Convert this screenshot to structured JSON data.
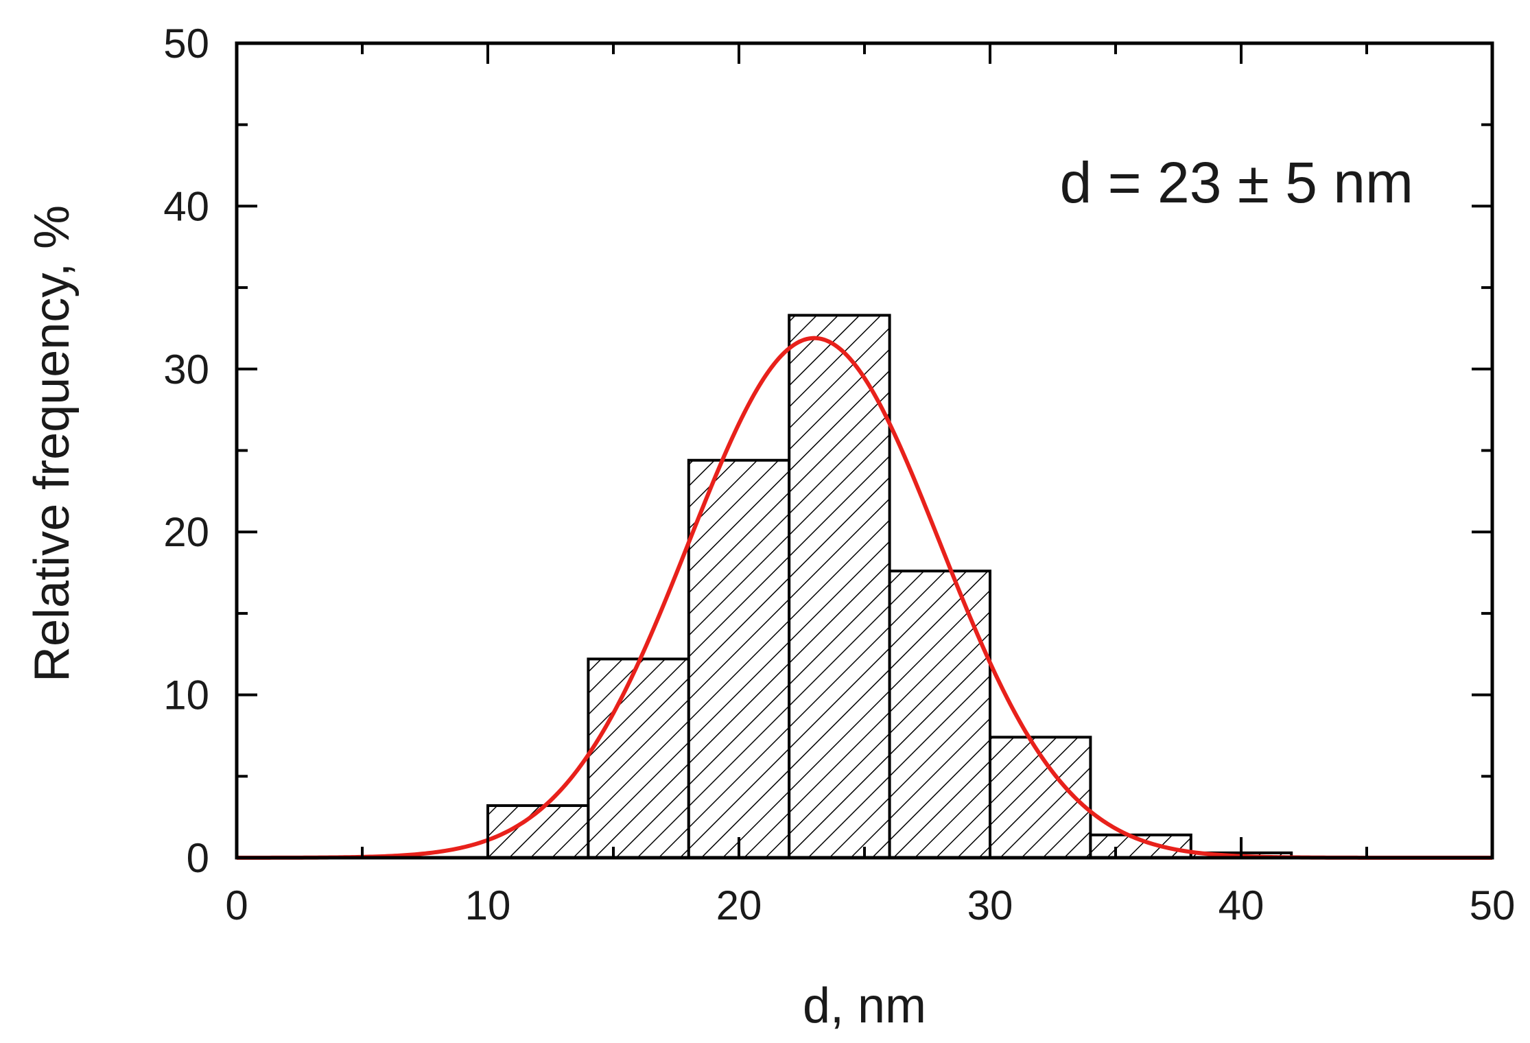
{
  "chart_data": {
    "type": "bar",
    "xlabel": "d, nm",
    "ylabel": "Relative frequency, %",
    "annotation": "d = 23 ± 5 nm",
    "xlim": [
      0,
      50
    ],
    "ylim": [
      0,
      50
    ],
    "x_ticks": [
      "0",
      "10",
      "20",
      "30",
      "40",
      "50"
    ],
    "y_ticks": [
      "0",
      "10",
      "20",
      "30",
      "40",
      "50"
    ],
    "grid": false,
    "bins": [
      {
        "from": 10,
        "to": 14,
        "value": 3.2
      },
      {
        "from": 14,
        "to": 18,
        "value": 12.2
      },
      {
        "from": 18,
        "to": 22,
        "value": 24.4
      },
      {
        "from": 22,
        "to": 26,
        "value": 33.3
      },
      {
        "from": 26,
        "to": 30,
        "value": 17.6
      },
      {
        "from": 30,
        "to": 34,
        "value": 7.4
      },
      {
        "from": 34,
        "to": 38,
        "value": 1.4
      },
      {
        "from": 38,
        "to": 42,
        "value": 0.3
      }
    ],
    "fit": {
      "type": "gaussian",
      "mean": 23.0,
      "sigma": 5.0,
      "peak": 31.9
    },
    "colors": {
      "bars_fill": "hatched",
      "bars_stroke": "#000000",
      "fit_line": "#e8211b",
      "axes": "#000000"
    }
  }
}
